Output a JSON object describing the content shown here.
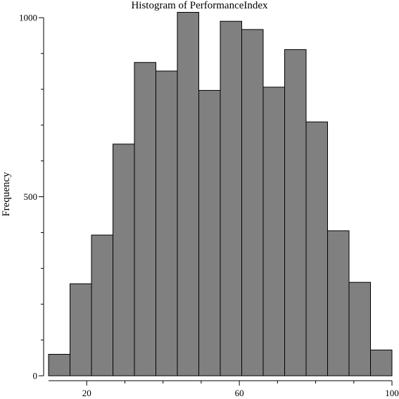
{
  "chart_data": {
    "type": "bar",
    "title": "Histogram of PerformanceIndex",
    "xlabel": "",
    "ylabel": "Frequency",
    "bins": [
      [
        10,
        15.625
      ],
      [
        15.625,
        21.25
      ],
      [
        21.25,
        26.875
      ],
      [
        26.875,
        32.5
      ],
      [
        32.5,
        38.125
      ],
      [
        38.125,
        43.75
      ],
      [
        43.75,
        49.375
      ],
      [
        49.375,
        55
      ],
      [
        55,
        60.625
      ],
      [
        60.625,
        66.25
      ],
      [
        66.25,
        71.875
      ],
      [
        71.875,
        77.5
      ],
      [
        77.5,
        83.125
      ],
      [
        83.125,
        88.75
      ],
      [
        88.75,
        94.375
      ],
      [
        94.375,
        100
      ]
    ],
    "values": [
      60,
      257,
      393,
      647,
      875,
      851,
      1015,
      797,
      990,
      967,
      806,
      911,
      709,
      405,
      261,
      72
    ],
    "xlim": [
      10,
      100
    ],
    "ylim": [
      0,
      1015
    ],
    "x_ticks": [
      20,
      60,
      100
    ],
    "x_minor_ticks": [
      30,
      40,
      50,
      70,
      80,
      90
    ],
    "y_ticks": [
      0,
      500,
      1000
    ],
    "y_minor_ticks": [
      100,
      200,
      300,
      400,
      600,
      700,
      800,
      900
    ],
    "grid": false,
    "bar_color": "#808080",
    "edge_color": "#000000"
  }
}
